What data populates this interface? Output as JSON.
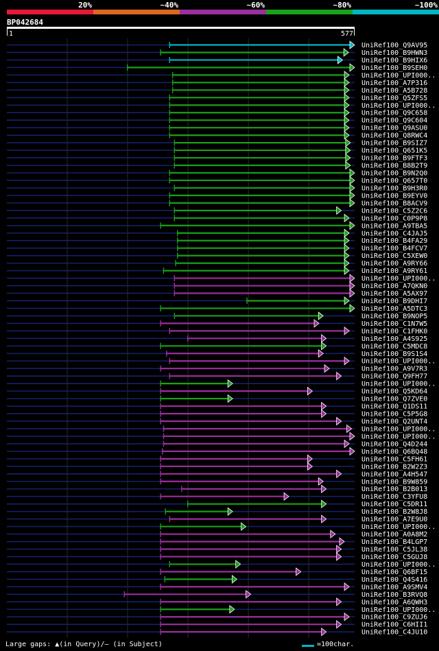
{
  "chart_data": {
    "type": "alignment-overview",
    "title": "BP042684",
    "query_length": 577,
    "scale_start_label": "1",
    "scale_end_label": "577",
    "identity_legend": [
      {
        "label": "20%",
        "color": "#e8173a"
      },
      {
        "label": "~40%",
        "color": "#dd6820"
      },
      {
        "label": "~60%",
        "color": "#9b2f9e"
      },
      {
        "label": "~80%",
        "color": "#1aa01a"
      },
      {
        "label": "~100%",
        "color": "#00b7c3"
      }
    ],
    "footer": {
      "gaps_label": "Large gaps: ▲(in Query)/— (in Subject)",
      "scale_label": "=100char."
    },
    "hits": [
      {
        "name": "UniRef100_Q9AV95",
        "start": 270,
        "end": 577,
        "cls": "c100"
      },
      {
        "name": "UniRef100_B9HWN3",
        "start": 255,
        "end": 567,
        "cls": "c80"
      },
      {
        "name": "UniRef100_B9HIX6",
        "start": 270,
        "end": 557,
        "cls": "c100"
      },
      {
        "name": "UniRef100_B9SEH0",
        "start": 200,
        "end": 577,
        "cls": "c80"
      },
      {
        "name": "UniRef100_UPI000..",
        "start": 275,
        "end": 568,
        "cls": "c80"
      },
      {
        "name": "UniRef100_A7P316",
        "start": 275,
        "end": 568,
        "cls": "c80"
      },
      {
        "name": "UniRef100_A5B728",
        "start": 275,
        "end": 568,
        "cls": "c80"
      },
      {
        "name": "UniRef100_Q5ZFS5",
        "start": 270,
        "end": 568,
        "cls": "c80"
      },
      {
        "name": "UniRef100_UPI000..",
        "start": 270,
        "end": 568,
        "cls": "c80"
      },
      {
        "name": "UniRef100_Q9C658",
        "start": 270,
        "end": 568,
        "cls": "c80"
      },
      {
        "name": "UniRef100_Q9C604",
        "start": 270,
        "end": 568,
        "cls": "c80"
      },
      {
        "name": "UniRef100_Q9ASU0",
        "start": 270,
        "end": 568,
        "cls": "c80"
      },
      {
        "name": "UniRef100_Q8RWC4",
        "start": 270,
        "end": 568,
        "cls": "c80"
      },
      {
        "name": "UniRef100_B9SIZ7",
        "start": 278,
        "end": 570,
        "cls": "c80"
      },
      {
        "name": "UniRef100_Q651K5",
        "start": 278,
        "end": 570,
        "cls": "c80"
      },
      {
        "name": "UniRef100_B9FTF3",
        "start": 278,
        "end": 570,
        "cls": "c80"
      },
      {
        "name": "UniRef100_B8B2T9",
        "start": 278,
        "end": 570,
        "cls": "c80"
      },
      {
        "name": "UniRef100_B9N2Q0",
        "start": 270,
        "end": 577,
        "cls": "c80"
      },
      {
        "name": "UniRef100_Q657T0",
        "start": 270,
        "end": 577,
        "cls": "c80"
      },
      {
        "name": "UniRef100_B9H3R0",
        "start": 278,
        "end": 577,
        "cls": "c80"
      },
      {
        "name": "UniRef100_B9EYV0",
        "start": 270,
        "end": 577,
        "cls": "c80"
      },
      {
        "name": "UniRef100_B8ACV9",
        "start": 270,
        "end": 577,
        "cls": "c80"
      },
      {
        "name": "UniRef100_C5Z2C6",
        "start": 278,
        "end": 555,
        "cls": "c80"
      },
      {
        "name": "UniRef100_C0P9P8",
        "start": 278,
        "end": 568,
        "cls": "c80"
      },
      {
        "name": "UniRef100_A9TBA5",
        "start": 255,
        "end": 577,
        "cls": "c80"
      },
      {
        "name": "UniRef100_C4JAJ5",
        "start": 283,
        "end": 568,
        "cls": "c80"
      },
      {
        "name": "UniRef100_B4FA29",
        "start": 283,
        "end": 568,
        "cls": "c80"
      },
      {
        "name": "UniRef100_B4FCV7",
        "start": 283,
        "end": 568,
        "cls": "c80"
      },
      {
        "name": "UniRef100_C5XEW0",
        "start": 283,
        "end": 568,
        "cls": "c80"
      },
      {
        "name": "UniRef100_A9RY66",
        "start": 280,
        "end": 568,
        "cls": "c80"
      },
      {
        "name": "UniRef100_A9RY61",
        "start": 260,
        "end": 568,
        "cls": "c80"
      },
      {
        "name": "UniRef100_UPI000..",
        "start": 278,
        "end": 577,
        "cls": "c60"
      },
      {
        "name": "UniRef100_A7QKN0",
        "start": 278,
        "end": 577,
        "cls": "c60"
      },
      {
        "name": "UniRef100_A5AX97",
        "start": 278,
        "end": 577,
        "cls": "c60"
      },
      {
        "name": "UniRef100_B9DHI7",
        "start": 398,
        "end": 568,
        "cls": "c80"
      },
      {
        "name": "UniRef100_A5DTC3",
        "start": 255,
        "end": 577,
        "cls": "c80"
      },
      {
        "name": "UniRef100_B9NOP5",
        "start": 278,
        "end": 525,
        "cls": "c80"
      },
      {
        "name": "UniRef100_C1N7W5",
        "start": 255,
        "end": 518,
        "cls": "c60"
      },
      {
        "name": "UniRef100_C1FHK0",
        "start": 270,
        "end": 568,
        "cls": "c60"
      },
      {
        "name": "UniRef100_A4S925",
        "start": 300,
        "end": 530,
        "cls": "c60"
      },
      {
        "name": "UniRef100_C5MDC8",
        "start": 255,
        "end": 530,
        "cls": "c80"
      },
      {
        "name": "UniRef100_B9S1S4",
        "start": 265,
        "end": 525,
        "cls": "c60"
      },
      {
        "name": "UniRef100_UPI000..",
        "start": 270,
        "end": 568,
        "cls": "c60"
      },
      {
        "name": "UniRef100_A9V7R3",
        "start": 255,
        "end": 535,
        "cls": "c60"
      },
      {
        "name": "UniRef100_Q9FH77",
        "start": 270,
        "end": 555,
        "cls": "c60"
      },
      {
        "name": "UniRef100_UPI000..",
        "start": 255,
        "end": 375,
        "cls": "c80"
      },
      {
        "name": "UniRef100_Q5KD64",
        "start": 255,
        "end": 507,
        "cls": "c60"
      },
      {
        "name": "UniRef100_Q7ZVE0",
        "start": 255,
        "end": 375,
        "cls": "c80"
      },
      {
        "name": "UniRef100_Q1DS11",
        "start": 255,
        "end": 530,
        "cls": "c60"
      },
      {
        "name": "UniRef100_C5P5G8",
        "start": 255,
        "end": 530,
        "cls": "c60"
      },
      {
        "name": "UniRef100_Q2UNT4",
        "start": 255,
        "end": 555,
        "cls": "c60"
      },
      {
        "name": "UniRef100_UPI000..",
        "start": 260,
        "end": 572,
        "cls": "c60"
      },
      {
        "name": "UniRef100_UPI000..",
        "start": 260,
        "end": 577,
        "cls": "c60"
      },
      {
        "name": "UniRef100_Q4D244",
        "start": 260,
        "end": 568,
        "cls": "c60"
      },
      {
        "name": "UniRef100_Q6BQ48",
        "start": 258,
        "end": 577,
        "cls": "c60"
      },
      {
        "name": "UniRef100_C5FH61",
        "start": 255,
        "end": 507,
        "cls": "c60"
      },
      {
        "name": "UniRef100_B2W2Z3",
        "start": 255,
        "end": 507,
        "cls": "c60"
      },
      {
        "name": "UniRef100_A4H547",
        "start": 255,
        "end": 555,
        "cls": "c60"
      },
      {
        "name": "UniRef100_B9W859",
        "start": 255,
        "end": 525,
        "cls": "c60"
      },
      {
        "name": "UniRef100_B2B013",
        "start": 290,
        "end": 530,
        "cls": "c60"
      },
      {
        "name": "UniRef100_C3YFU8",
        "start": 255,
        "end": 468,
        "cls": "c60"
      },
      {
        "name": "UniRef100_C5DR11",
        "start": 300,
        "end": 530,
        "cls": "c80"
      },
      {
        "name": "UniRef100_B2W8J8",
        "start": 263,
        "end": 375,
        "cls": "c80"
      },
      {
        "name": "UniRef100_A7E9U0",
        "start": 270,
        "end": 530,
        "cls": "c60"
      },
      {
        "name": "UniRef100_UPI000..",
        "start": 255,
        "end": 397,
        "cls": "c80"
      },
      {
        "name": "UniRef100_A0A8M2",
        "start": 255,
        "end": 545,
        "cls": "c60"
      },
      {
        "name": "UniRef100_B4LGP7",
        "start": 255,
        "end": 560,
        "cls": "c60"
      },
      {
        "name": "UniRef100_C5JL38",
        "start": 255,
        "end": 555,
        "cls": "c60"
      },
      {
        "name": "UniRef100_C5GUJ8",
        "start": 255,
        "end": 555,
        "cls": "c60"
      },
      {
        "name": "UniRef100_UPI000..",
        "start": 270,
        "end": 388,
        "cls": "c80"
      },
      {
        "name": "UniRef100_Q6BF15",
        "start": 255,
        "end": 488,
        "cls": "c60"
      },
      {
        "name": "UniRef100_Q4S416",
        "start": 262,
        "end": 382,
        "cls": "c80"
      },
      {
        "name": "UniRef100_A9SMV4",
        "start": 255,
        "end": 568,
        "cls": "c60"
      },
      {
        "name": "UniRef100_B3RVQ8",
        "start": 195,
        "end": 405,
        "cls": "c60"
      },
      {
        "name": "UniRef100_A6QWH3",
        "start": 255,
        "end": 555,
        "cls": "c60"
      },
      {
        "name": "UniRef100_UPI000..",
        "start": 255,
        "end": 378,
        "cls": "c80"
      },
      {
        "name": "UniRef100_C9ZUJ6",
        "start": 255,
        "end": 568,
        "cls": "c60"
      },
      {
        "name": "UniRef100_C6HII1",
        "start": 255,
        "end": 555,
        "cls": "c60"
      },
      {
        "name": "UniRef100_C4JU10",
        "start": 255,
        "end": 530,
        "cls": "c60"
      }
    ]
  }
}
